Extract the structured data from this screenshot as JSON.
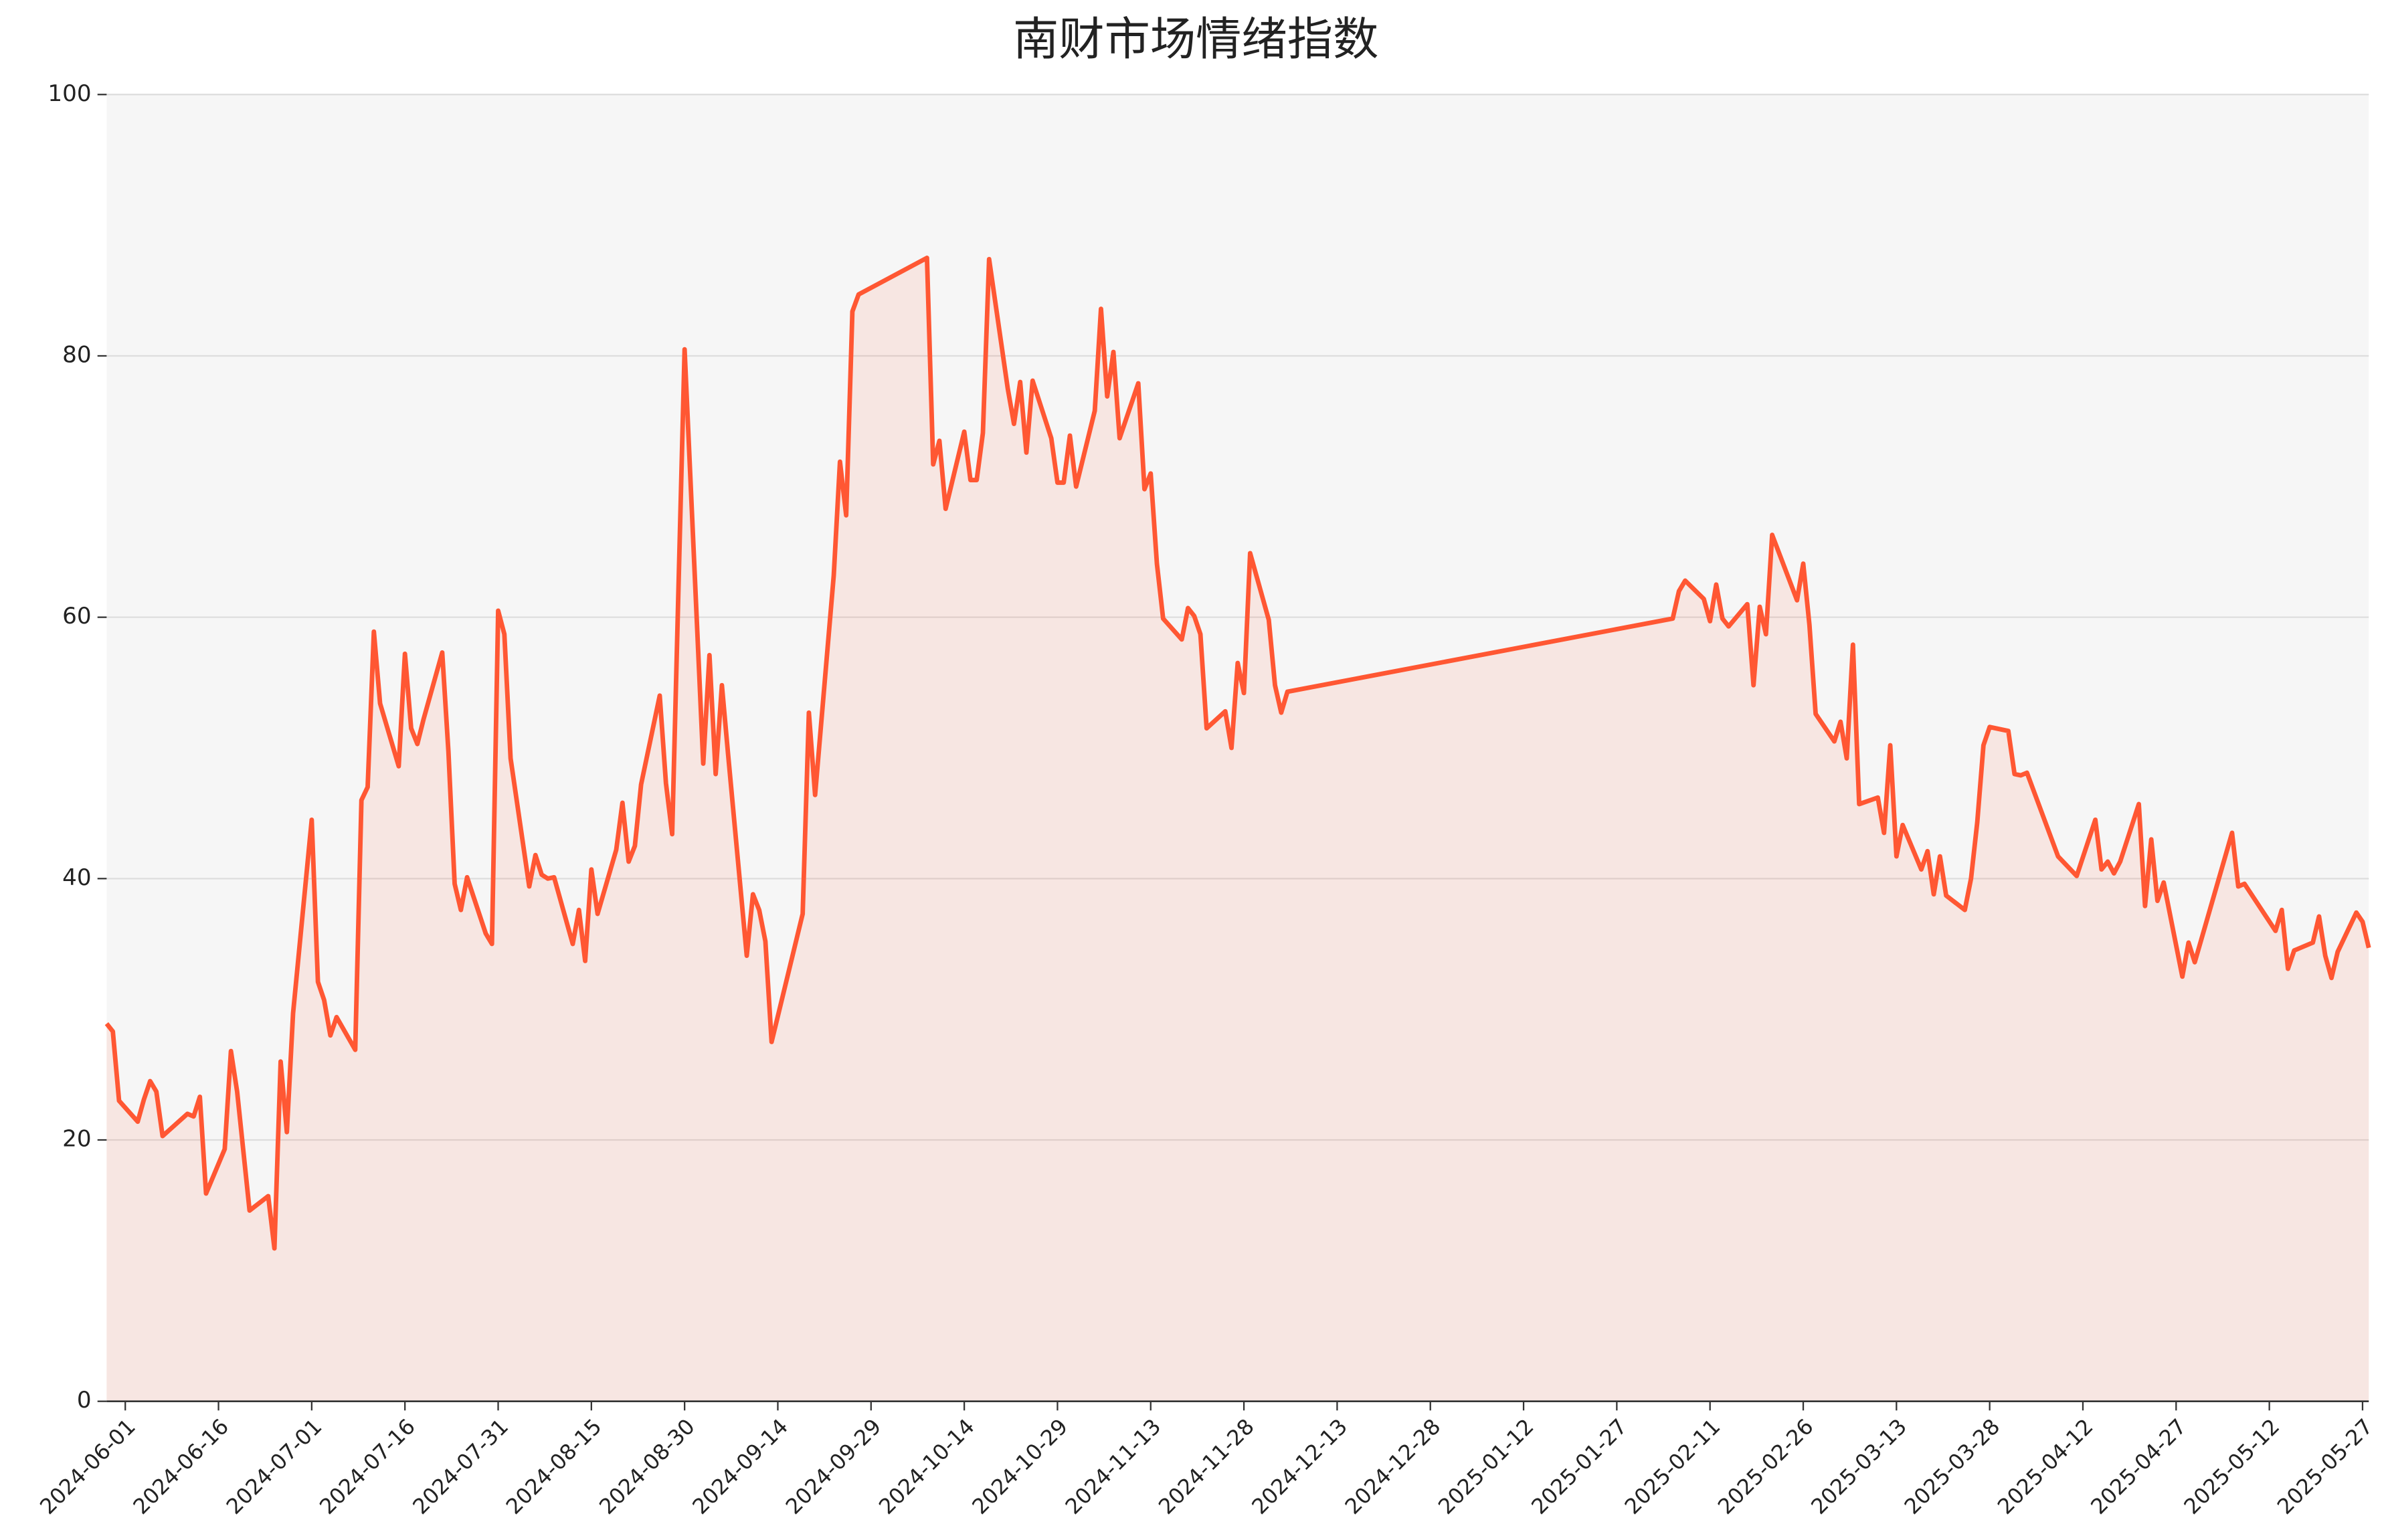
{
  "chart_data": {
    "type": "line",
    "title": "南财市场情绪指数",
    "color": "#ff5733",
    "area": true,
    "grid": true,
    "x": [
      "2024-05-29",
      "2024-05-30",
      "2024-05-31",
      "2024-06-03",
      "2024-06-04",
      "2024-06-05",
      "2024-06-06",
      "2024-06-07",
      "2024-06-11",
      "2024-06-12",
      "2024-06-13",
      "2024-06-14",
      "2024-06-17",
      "2024-06-18",
      "2024-06-19",
      "2024-06-21",
      "2024-06-24",
      "2024-06-25",
      "2024-06-26",
      "2024-06-27",
      "2024-06-28",
      "2024-07-01",
      "2024-07-02",
      "2024-07-03",
      "2024-07-04",
      "2024-07-05",
      "2024-07-08",
      "2024-07-09",
      "2024-07-10",
      "2024-07-11",
      "2024-07-12",
      "2024-07-15",
      "2024-07-16",
      "2024-07-17",
      "2024-07-18",
      "2024-07-19",
      "2024-07-22",
      "2024-07-23",
      "2024-07-24",
      "2024-07-25",
      "2024-07-26",
      "2024-07-29",
      "2024-07-30",
      "2024-07-31",
      "2024-08-01",
      "2024-08-02",
      "2024-08-05",
      "2024-08-06",
      "2024-08-07",
      "2024-08-08",
      "2024-08-09",
      "2024-08-12",
      "2024-08-13",
      "2024-08-14",
      "2024-08-15",
      "2024-08-16",
      "2024-08-19",
      "2024-08-20",
      "2024-08-21",
      "2024-08-22",
      "2024-08-23",
      "2024-08-26",
      "2024-08-27",
      "2024-08-28",
      "2024-08-30",
      "2024-09-02",
      "2024-09-03",
      "2024-09-04",
      "2024-09-05",
      "2024-09-06",
      "2024-09-09",
      "2024-09-10",
      "2024-09-11",
      "2024-09-12",
      "2024-09-13",
      "2024-09-18",
      "2024-09-19",
      "2024-09-20",
      "2024-09-23",
      "2024-09-24",
      "2024-09-25",
      "2024-09-26",
      "2024-09-27",
      "2024-10-08",
      "2024-10-09",
      "2024-10-10",
      "2024-10-11",
      "2024-10-14",
      "2024-10-15",
      "2024-10-16",
      "2024-10-17",
      "2024-10-18",
      "2024-10-21",
      "2024-10-22",
      "2024-10-23",
      "2024-10-24",
      "2024-10-25",
      "2024-10-28",
      "2024-10-29",
      "2024-10-30",
      "2024-10-31",
      "2024-11-01",
      "2024-11-04",
      "2024-11-05",
      "2024-11-06",
      "2024-11-07",
      "2024-11-08",
      "2024-11-11",
      "2024-11-12",
      "2024-11-13",
      "2024-11-14",
      "2024-11-15",
      "2024-11-18",
      "2024-11-19",
      "2024-11-20",
      "2024-11-21",
      "2024-11-22",
      "2024-11-25",
      "2024-11-26",
      "2024-11-27",
      "2024-11-28",
      "2024-11-29",
      "2024-12-02",
      "2024-12-03",
      "2024-12-04",
      "2024-12-05",
      "2025-02-05",
      "2025-02-06",
      "2025-02-07",
      "2025-02-10",
      "2025-02-11",
      "2025-02-12",
      "2025-02-13",
      "2025-02-14",
      "2025-02-17",
      "2025-02-18",
      "2025-02-19",
      "2025-02-20",
      "2025-02-21",
      "2025-02-25",
      "2025-02-26",
      "2025-02-27",
      "2025-02-28",
      "2025-03-03",
      "2025-03-04",
      "2025-03-05",
      "2025-03-06",
      "2025-03-07",
      "2025-03-10",
      "2025-03-11",
      "2025-03-12",
      "2025-03-13",
      "2025-03-14",
      "2025-03-17",
      "2025-03-18",
      "2025-03-19",
      "2025-03-20",
      "2025-03-21",
      "2025-03-24",
      "2025-03-25",
      "2025-03-26",
      "2025-03-27",
      "2025-03-28",
      "2025-03-31",
      "2025-04-01",
      "2025-04-02",
      "2025-04-03",
      "2025-04-08",
      "2025-04-11",
      "2025-04-14",
      "2025-04-15",
      "2025-04-16",
      "2025-04-17",
      "2025-04-18",
      "2025-04-21",
      "2025-04-22",
      "2025-04-23",
      "2025-04-24",
      "2025-04-25",
      "2025-04-28",
      "2025-04-29",
      "2025-04-30",
      "2025-05-06",
      "2025-05-07",
      "2025-05-08",
      "2025-05-13",
      "2025-05-14",
      "2025-05-15",
      "2025-05-16",
      "2025-05-19",
      "2025-05-20",
      "2025-05-21",
      "2025-05-22",
      "2025-05-23",
      "2025-05-26",
      "2025-05-27",
      "2025-05-28"
    ],
    "values": [
      28.9,
      28.3,
      23.0,
      21.4,
      23.1,
      24.5,
      23.7,
      20.3,
      22.0,
      21.8,
      23.3,
      15.9,
      19.3,
      26.8,
      23.7,
      14.6,
      15.7,
      11.7,
      26.0,
      20.6,
      29.7,
      44.5,
      32.1,
      30.7,
      28.0,
      29.4,
      26.9,
      46.0,
      47.0,
      58.9,
      53.4,
      48.6,
      57.2,
      51.5,
      50.3,
      52.2,
      57.3,
      49.7,
      39.6,
      37.6,
      40.1,
      35.8,
      35.0,
      60.5,
      58.7,
      49.2,
      39.4,
      41.8,
      40.3,
      40.0,
      40.1,
      35.0,
      37.6,
      33.7,
      40.7,
      37.3,
      42.2,
      45.8,
      41.3,
      42.5,
      47.2,
      54.0,
      47.3,
      43.4,
      80.5,
      48.8,
      57.1,
      48.0,
      54.8,
      49.5,
      34.1,
      38.8,
      37.6,
      35.2,
      27.5,
      37.3,
      52.7,
      46.4,
      63.2,
      71.9,
      67.8,
      83.4,
      84.7,
      87.5,
      71.7,
      73.5,
      68.3,
      74.2,
      70.5,
      70.5,
      74.1,
      87.4,
      77.5,
      74.8,
      78.0,
      72.6,
      78.1,
      73.7,
      70.3,
      70.3,
      73.9,
      70.0,
      75.8,
      83.6,
      76.9,
      80.3,
      73.7,
      77.9,
      69.8,
      71.0,
      64.1,
      59.9,
      58.3,
      60.7,
      60.1,
      58.7,
      51.5,
      52.8,
      50.0,
      56.5,
      54.2,
      64.9,
      59.8,
      54.8,
      52.7,
      54.3,
      59.9,
      62.0,
      62.8,
      61.4,
      59.7,
      62.5,
      59.9,
      59.3,
      61.0,
      54.8,
      60.8,
      58.7,
      66.3,
      61.3,
      64.1,
      59.4,
      52.6,
      50.5,
      52.0,
      49.2,
      57.9,
      45.7,
      46.2,
      43.5,
      50.2,
      41.7,
      44.1,
      40.7,
      42.1,
      38.8,
      41.7,
      38.7,
      37.6,
      40.0,
      44.3,
      50.2,
      51.6,
      51.3,
      48.0,
      47.9,
      48.1,
      41.7,
      40.2,
      44.5,
      40.7,
      41.3,
      40.4,
      41.3,
      45.7,
      37.9,
      43.0,
      38.3,
      39.7,
      32.5,
      35.1,
      33.6,
      43.5,
      39.4,
      39.6,
      36.0,
      37.6,
      33.1,
      34.5,
      35.1,
      37.1,
      34.1,
      32.4,
      34.4,
      37.4,
      36.7,
      34.7
    ],
    "xlim": [
      "2024-05-29",
      "2025-05-28"
    ],
    "xticks": [
      "2024-06-01",
      "2024-06-16",
      "2024-07-01",
      "2024-07-16",
      "2024-07-31",
      "2024-08-15",
      "2024-08-30",
      "2024-09-14",
      "2024-09-29",
      "2024-10-14",
      "2024-10-29",
      "2024-11-13",
      "2024-11-28",
      "2024-12-13",
      "2024-12-28",
      "2025-01-12",
      "2025-01-27",
      "2025-02-11",
      "2025-02-26",
      "2025-03-13",
      "2025-03-28",
      "2025-04-12",
      "2025-04-27",
      "2025-05-12",
      "2025-05-27"
    ],
    "ylim": [
      0,
      100
    ],
    "yticks": [
      0,
      20,
      40,
      60,
      80,
      100
    ]
  }
}
